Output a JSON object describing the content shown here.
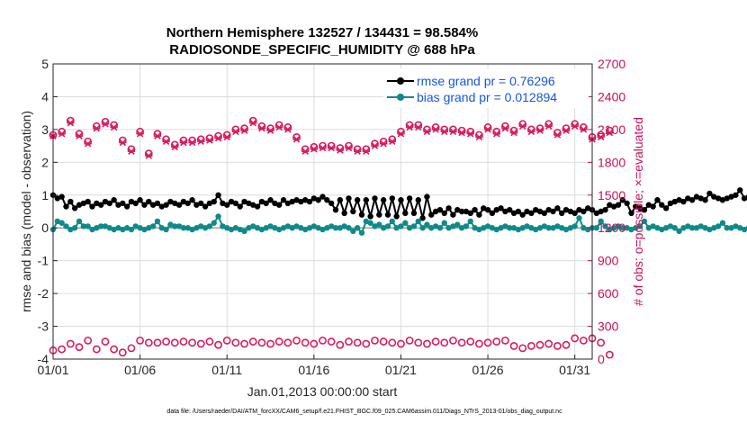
{
  "chart_data": {
    "type": "line",
    "title": "Northern Hemisphere 132527 / 134431 = 98.584%",
    "subtitle": "RADIOSONDE_SPECIFIC_HUMIDITY @ 688 hPa",
    "xlabel": "Jan.01,2013 00:00:00 start",
    "ylabel": "rmse and bias (model - observation)",
    "ylabel_right": "# of obs: o=possible; ×=evaluated",
    "xlim": [
      1,
      32
    ],
    "ylim": [
      -4,
      5
    ],
    "ylim_right": [
      0,
      2700
    ],
    "x_ticks": [
      1,
      6,
      11,
      16,
      21,
      26,
      31
    ],
    "x_tick_labels": [
      "01/01",
      "01/06",
      "01/11",
      "01/16",
      "01/21",
      "01/26",
      "01/31"
    ],
    "y_ticks": [
      -4,
      -3,
      -2,
      -1,
      0,
      1,
      2,
      3,
      4,
      5
    ],
    "y_tick_labels": [
      "-4",
      "-3",
      "-2",
      "-1",
      "0",
      "1",
      "2",
      "3",
      "4",
      "5"
    ],
    "y_ticks_right": [
      0,
      300,
      600,
      900,
      1200,
      1500,
      1800,
      2100,
      2400,
      2700
    ],
    "y_tick_labels_right": [
      "0",
      "300",
      "600",
      "900",
      "1200",
      "1500",
      "1800",
      "2100",
      "2400",
      "2700"
    ],
    "x_step": 0.25,
    "grid": true,
    "legend_position": "top-right",
    "series": [
      {
        "name": "rmse grand pr = 0.76296",
        "color": "#000000",
        "axis": "left",
        "values": [
          1.0,
          0.9,
          0.95,
          0.65,
          0.8,
          0.6,
          0.7,
          0.75,
          0.8,
          0.65,
          0.75,
          0.7,
          0.8,
          0.75,
          0.85,
          0.7,
          0.75,
          0.65,
          0.8,
          0.75,
          0.85,
          0.7,
          0.8,
          0.7,
          0.75,
          0.65,
          0.7,
          0.8,
          0.75,
          0.7,
          0.8,
          0.75,
          0.85,
          0.7,
          0.75,
          0.65,
          0.75,
          0.8,
          1.0,
          0.75,
          0.7,
          0.8,
          0.75,
          0.65,
          0.8,
          0.75,
          0.7,
          0.65,
          0.8,
          0.75,
          0.85,
          0.75,
          0.7,
          0.85,
          0.75,
          0.8,
          0.85,
          0.8,
          0.85,
          0.8,
          0.9,
          0.85,
          0.95,
          0.85,
          0.75,
          0.55,
          0.85,
          0.45,
          0.9,
          0.5,
          0.85,
          0.4,
          0.85,
          0.35,
          0.9,
          0.4,
          0.85,
          0.4,
          0.9,
          0.35,
          0.85,
          0.45,
          0.9,
          0.45,
          0.85,
          0.3,
          0.95,
          0.4,
          0.5,
          0.55,
          0.45,
          0.6,
          0.4,
          0.55,
          0.5,
          0.5,
          0.45,
          0.55,
          0.4,
          0.6,
          0.55,
          0.45,
          0.55,
          0.6,
          0.5,
          0.55,
          0.45,
          0.5,
          0.4,
          0.5,
          0.45,
          0.55,
          0.5,
          0.45,
          0.55,
          0.5,
          0.6,
          0.45,
          0.55,
          0.5,
          0.45,
          0.55,
          0.5,
          0.6,
          0.55,
          0.45,
          0.5,
          0.55,
          0.7,
          0.65,
          0.7,
          0.85,
          0.75,
          0.45,
          0.65,
          0.6,
          0.55,
          0.7,
          0.65,
          0.85,
          0.7,
          0.6,
          0.75,
          0.8,
          0.85,
          0.8,
          0.9,
          0.85,
          0.95,
          0.9,
          0.85,
          1.05,
          0.95,
          0.9,
          0.85,
          0.9,
          0.95,
          1.0,
          1.15,
          0.9,
          0.95,
          1.0,
          0.85,
          0.9,
          0.75,
          0.95,
          0.85,
          0.65,
          0.6,
          0.75,
          0.5,
          0.6,
          0.55,
          0.65,
          0.7,
          0.6,
          0.75,
          0.65,
          0.85,
          0.8,
          0.75,
          0.9,
          0.8,
          0.7,
          0.65,
          0.75,
          0.8,
          0.7,
          0.8,
          0.75,
          0.7,
          0.6,
          0.8,
          0.7,
          0.85,
          0.9,
          0.75,
          0.6,
          0.85,
          0.7,
          0.8,
          0.9,
          0.95,
          0.85,
          1.0,
          0.9,
          0.85,
          0.95,
          1.05,
          1.0,
          0.9,
          0.95,
          0.8,
          0.9,
          0.95,
          1.0,
          0.85,
          0.75,
          0.9,
          0.8,
          0.85,
          1.0,
          1.15,
          1.05,
          0.95,
          1.1,
          1.2,
          1.0,
          0.95,
          1.05,
          1.0,
          0.9,
          1.0,
          0.85,
          0.75,
          0.8,
          0.7,
          0.65,
          0.7,
          0.6,
          0.55,
          0.5,
          0.45,
          0.5
        ]
      },
      {
        "name": "bias grand pr = 0.012894",
        "color": "#0f8a8a",
        "axis": "left",
        "values": [
          -0.05,
          0.2,
          0.15,
          0.05,
          -0.05,
          0.0,
          0.2,
          0.05,
          0.05,
          -0.05,
          0.0,
          0.05,
          0.05,
          0.0,
          -0.05,
          0.0,
          -0.05,
          0.0,
          -0.05,
          0.05,
          0.0,
          -0.05,
          0.0,
          0.05,
          0.2,
          0.0,
          -0.05,
          0.1,
          0.05,
          0.05,
          0.0,
          0.0,
          -0.05,
          0.0,
          0.05,
          0.0,
          0.05,
          0.15,
          0.35,
          0.05,
          0.0,
          -0.05,
          0.0,
          -0.05,
          -0.1,
          0.0,
          0.05,
          0.0,
          -0.05,
          0.0,
          0.05,
          0.0,
          -0.05,
          0.0,
          0.05,
          0.0,
          0.05,
          0.0,
          -0.05,
          0.0,
          0.05,
          0.0,
          -0.05,
          0.0,
          0.05,
          0.0,
          0.0,
          0.05,
          0.0,
          -0.1,
          0.0,
          -0.15,
          0.2,
          0.15,
          0.05,
          0.1,
          0.0,
          0.05,
          0.2,
          0.0,
          0.05,
          0.15,
          0.0,
          0.05,
          0.2,
          0.0,
          0.1,
          0.0,
          0.05,
          0.0,
          0.15,
          0.0,
          0.05,
          0.1,
          0.0,
          0.05,
          0.2,
          0.0,
          -0.05,
          0.0,
          0.05,
          0.0,
          -0.05,
          0.0,
          0.05,
          0.0,
          0.0,
          -0.05,
          0.0,
          0.05,
          0.0,
          -0.05,
          0.0,
          0.05,
          0.0,
          0.0,
          0.05,
          0.0,
          -0.05,
          0.0,
          0.05,
          0.3,
          0.0,
          -0.05,
          0.0,
          0.0,
          0.2,
          0.05,
          -0.05,
          0.0,
          0.05,
          0.0,
          0.0,
          -0.05,
          0.0,
          0.05,
          0.2,
          0.0,
          0.05,
          0.0,
          -0.05,
          0.0,
          0.05,
          0.0,
          -0.1,
          0.0,
          0.05,
          0.0,
          0.0,
          0.05,
          0.0,
          -0.05,
          0.0,
          0.05,
          0.15,
          0.0,
          0.0,
          0.05,
          0.0,
          -0.05,
          0.0,
          0.05,
          0.0,
          -0.05,
          0.0,
          0.05,
          0.0,
          0.0,
          0.05,
          0.0,
          -0.05,
          0.0,
          0.05,
          -0.05,
          0.0,
          0.05,
          0.0,
          -0.05,
          0.0,
          0.0,
          0.05,
          0.1,
          0.0,
          0.05,
          0.0,
          -0.05,
          0.0,
          0.05,
          0.0,
          -0.05,
          0.05,
          0.0,
          0.0,
          -0.05,
          0.0,
          0.05,
          -0.05,
          -0.55,
          -0.15,
          0.0,
          -0.1,
          -0.05,
          0.0,
          0.05,
          0.15,
          0.3,
          0.0,
          0.05,
          0.1,
          0.0,
          0.05,
          0.0,
          0.2,
          0.05,
          0.1,
          0.0,
          0.15,
          0.05,
          0.0,
          0.3,
          0.0,
          0.25,
          0.05,
          0.0,
          0.05,
          0.2,
          0.05,
          0.1,
          0.05,
          0.0,
          0.05,
          0.2,
          0.0,
          0.05,
          0.0,
          0.05,
          0.1,
          0.2
        ]
      },
      {
        "name": "obs possible",
        "marker": "o",
        "color": "#d81b60",
        "axis": "right",
        "values": [
          2050,
          2080,
          2180,
          2060,
          1990,
          2130,
          2170,
          2140,
          2000,
          1920,
          2080,
          1880,
          2060,
          2010,
          1960,
          2000,
          2000,
          2010,
          2020,
          2040,
          2050,
          2100,
          2110,
          2180,
          2130,
          2110,
          2140,
          2120,
          2030,
          1920,
          1940,
          1950,
          1950,
          1930,
          1950,
          1920,
          1920,
          1970,
          1990,
          2010,
          2080,
          2140,
          2140,
          2100,
          2120,
          2100,
          2100,
          2090,
          2080,
          2050,
          2120,
          2080,
          2130,
          2090,
          2150,
          2100,
          2110,
          2150,
          2070,
          2110,
          2150,
          2120,
          2030,
          2050,
          2090
        ],
        "x_start": 1,
        "x_step": 0.5
      },
      {
        "name": "obs evaluated",
        "marker": "x",
        "color": "#d81b60",
        "axis": "right",
        "values": [
          2040,
          2060,
          2160,
          2040,
          1970,
          2110,
          2150,
          2120,
          1980,
          1900,
          2060,
          1860,
          2040,
          1990,
          1940,
          1980,
          1980,
          1990,
          2000,
          2020,
          2030,
          2080,
          2090,
          2160,
          2110,
          2090,
          2120,
          2100,
          2010,
          1900,
          1920,
          1930,
          1930,
          1910,
          1930,
          1900,
          1900,
          1950,
          1970,
          1990,
          2060,
          2120,
          2120,
          2080,
          2100,
          2080,
          2080,
          2070,
          2060,
          2030,
          2100,
          2060,
          2110,
          2070,
          2130,
          2080,
          2090,
          2130,
          2050,
          2090,
          2130,
          2100,
          2010,
          2030,
          2070
        ],
        "x_start": 1,
        "x_step": 0.5
      },
      {
        "name": "obs possible (lower)",
        "marker": "o",
        "color": "#d81b60",
        "axis": "right",
        "values": [
          80,
          90,
          140,
          110,
          170,
          90,
          160,
          90,
          60,
          100,
          170,
          150,
          150,
          160,
          150,
          160,
          150,
          140,
          160,
          130,
          170,
          150,
          140,
          160,
          150,
          140,
          160,
          150,
          170,
          150,
          140,
          170,
          160,
          130,
          160,
          150,
          140,
          170,
          160,
          150,
          140,
          170,
          150,
          140,
          160,
          150,
          170,
          150,
          160,
          140,
          150,
          160,
          170,
          120,
          100,
          120,
          130,
          140,
          120,
          130,
          190,
          170,
          190,
          150,
          40
        ],
        "x_start": 1,
        "x_step": 0.5
      }
    ],
    "zero_line": true
  },
  "footer": {
    "text": "data file: /Users/raeder/DAI/ATM_forcXX/CAM6_setup/f.e21.FHIST_BGC.f09_025.CAM6assim.011/Diags_NTrS_2013-01/obs_diag_output.nc"
  }
}
